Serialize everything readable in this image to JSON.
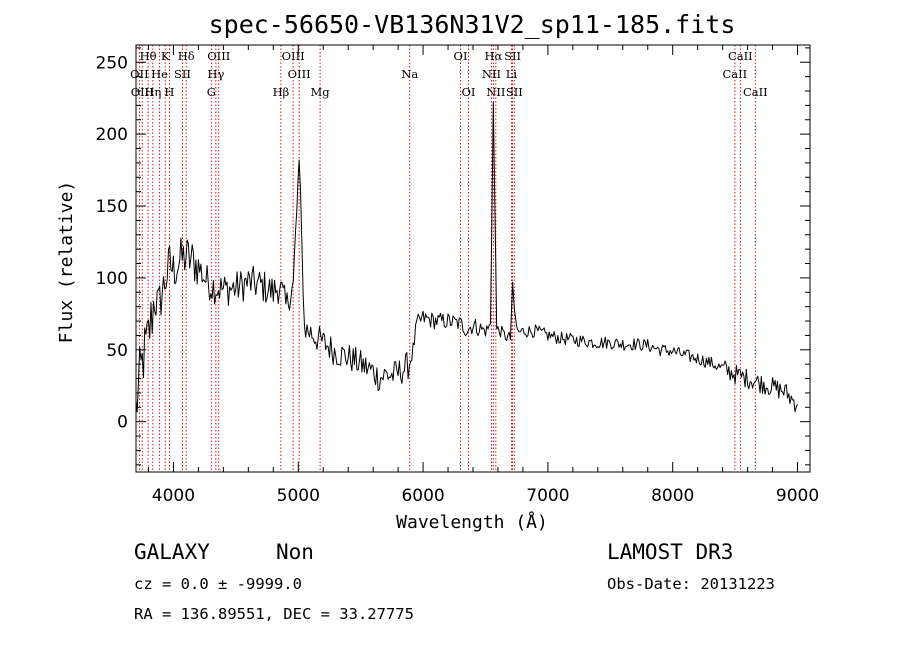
{
  "chart_data": {
    "type": "line",
    "title": "spec-56650-VB136N31V2_sp11-185.fits",
    "xlabel": "Wavelength (Å)",
    "ylabel": "Flux (relative)",
    "xlim": [
      3700,
      9100
    ],
    "ylim": [
      -35,
      262
    ],
    "x_ticks": [
      4000,
      5000,
      6000,
      7000,
      8000,
      9000
    ],
    "y_ticks": [
      0,
      50,
      100,
      150,
      200,
      250
    ],
    "x_tick_labels": [
      "4000",
      "5000",
      "6000",
      "7000",
      "8000",
      "9000"
    ],
    "y_tick_labels": [
      "0",
      "50",
      "100",
      "150",
      "200",
      "250"
    ],
    "series": [
      {
        "name": "flux",
        "x": [
          3700,
          3730,
          3760,
          3790,
          3820,
          3850,
          3880,
          3910,
          3940,
          3970,
          4000,
          4050,
          4100,
          4150,
          4200,
          4250,
          4300,
          4350,
          4400,
          4500,
          4600,
          4700,
          4800,
          4850,
          4900,
          4960,
          5007,
          5050,
          5100,
          5150,
          5200,
          5250,
          5300,
          5400,
          5500,
          5600,
          5650,
          5700,
          5750,
          5800,
          5850,
          5890,
          5920,
          5950,
          6000,
          6100,
          6200,
          6300,
          6350,
          6400,
          6450,
          6500,
          6540,
          6563,
          6590,
          6620,
          6650,
          6700,
          6717,
          6731,
          6760,
          6800,
          6900,
          7000,
          7100,
          7200,
          7300,
          7400,
          7500,
          7600,
          7700,
          7800,
          7900,
          8000,
          8100,
          8200,
          8300,
          8400,
          8500,
          8600,
          8700,
          8800,
          8900,
          8950,
          9000
        ],
        "values": [
          8,
          30,
          45,
          55,
          70,
          85,
          80,
          90,
          100,
          110,
          105,
          112,
          115,
          112,
          108,
          100,
          95,
          93,
          92,
          93,
          97,
          95,
          90,
          95,
          80,
          95,
          182,
          65,
          62,
          58,
          55,
          52,
          48,
          45,
          40,
          35,
          30,
          33,
          32,
          34,
          37,
          40,
          50,
          68,
          72,
          70,
          70,
          68,
          64,
          67,
          65,
          63,
          67,
          222,
          64,
          63,
          60,
          58,
          97,
          75,
          62,
          63,
          63,
          60,
          58,
          57,
          56,
          55,
          55,
          54,
          54,
          53,
          50,
          49,
          46,
          44,
          41,
          37,
          33,
          30,
          27,
          24,
          21,
          16,
          12
        ]
      }
    ],
    "emission_lines": [
      {
        "label": "Hθ",
        "x": 3797,
        "row": 0
      },
      {
        "label": "K",
        "x": 3934,
        "row": 0
      },
      {
        "label": "Hδ",
        "x": 4102,
        "row": 0
      },
      {
        "label": "OIII",
        "x": 4363,
        "row": 0
      },
      {
        "label": "OIII",
        "x": 4959,
        "row": 0
      },
      {
        "label": "OI",
        "x": 6300,
        "row": 0
      },
      {
        "label": "Hα",
        "x": 6563,
        "row": 0
      },
      {
        "label": "SII",
        "x": 6717,
        "row": 0
      },
      {
        "label": "CaII",
        "x": 8542,
        "row": 0
      },
      {
        "label": "OII",
        "x": 3727,
        "row": 1
      },
      {
        "label": "He",
        "x": 3889,
        "row": 1
      },
      {
        "label": "SII",
        "x": 4072,
        "row": 1
      },
      {
        "label": "Hγ",
        "x": 4340,
        "row": 1
      },
      {
        "label": "OIII",
        "x": 5007,
        "row": 1
      },
      {
        "label": "Na",
        "x": 5893,
        "row": 1
      },
      {
        "label": "NII",
        "x": 6548,
        "row": 1
      },
      {
        "label": "Li",
        "x": 6708,
        "row": 1
      },
      {
        "label": "CaII",
        "x": 8498,
        "row": 1
      },
      {
        "label": "OIII",
        "x": 3750,
        "row": 2
      },
      {
        "label": "Hη",
        "x": 3835,
        "row": 2
      },
      {
        "label": "H",
        "x": 3968,
        "row": 2
      },
      {
        "label": "G",
        "x": 4304,
        "row": 2
      },
      {
        "label": "Hβ",
        "x": 4861,
        "row": 2
      },
      {
        "label": "Mg",
        "x": 5175,
        "row": 2
      },
      {
        "label": "OI",
        "x": 6364,
        "row": 2
      },
      {
        "label": "NII",
        "x": 6583,
        "row": 2
      },
      {
        "label": "SII",
        "x": 6731,
        "row": 2
      },
      {
        "label": "CaII",
        "x": 8662,
        "row": 2
      }
    ],
    "colors": {
      "spectrum": "#000000",
      "line_markers": "#cc0000",
      "axes": "#000000"
    }
  },
  "info": {
    "object_class": "GALAXY",
    "subclass": "Non",
    "redshift_text": "cz = 0.0 ± -9999.0",
    "coords_text": "RA = 136.89551, DEC =  33.27775",
    "survey": "LAMOST DR3",
    "obs_date": "Obs-Date: 20131223"
  }
}
